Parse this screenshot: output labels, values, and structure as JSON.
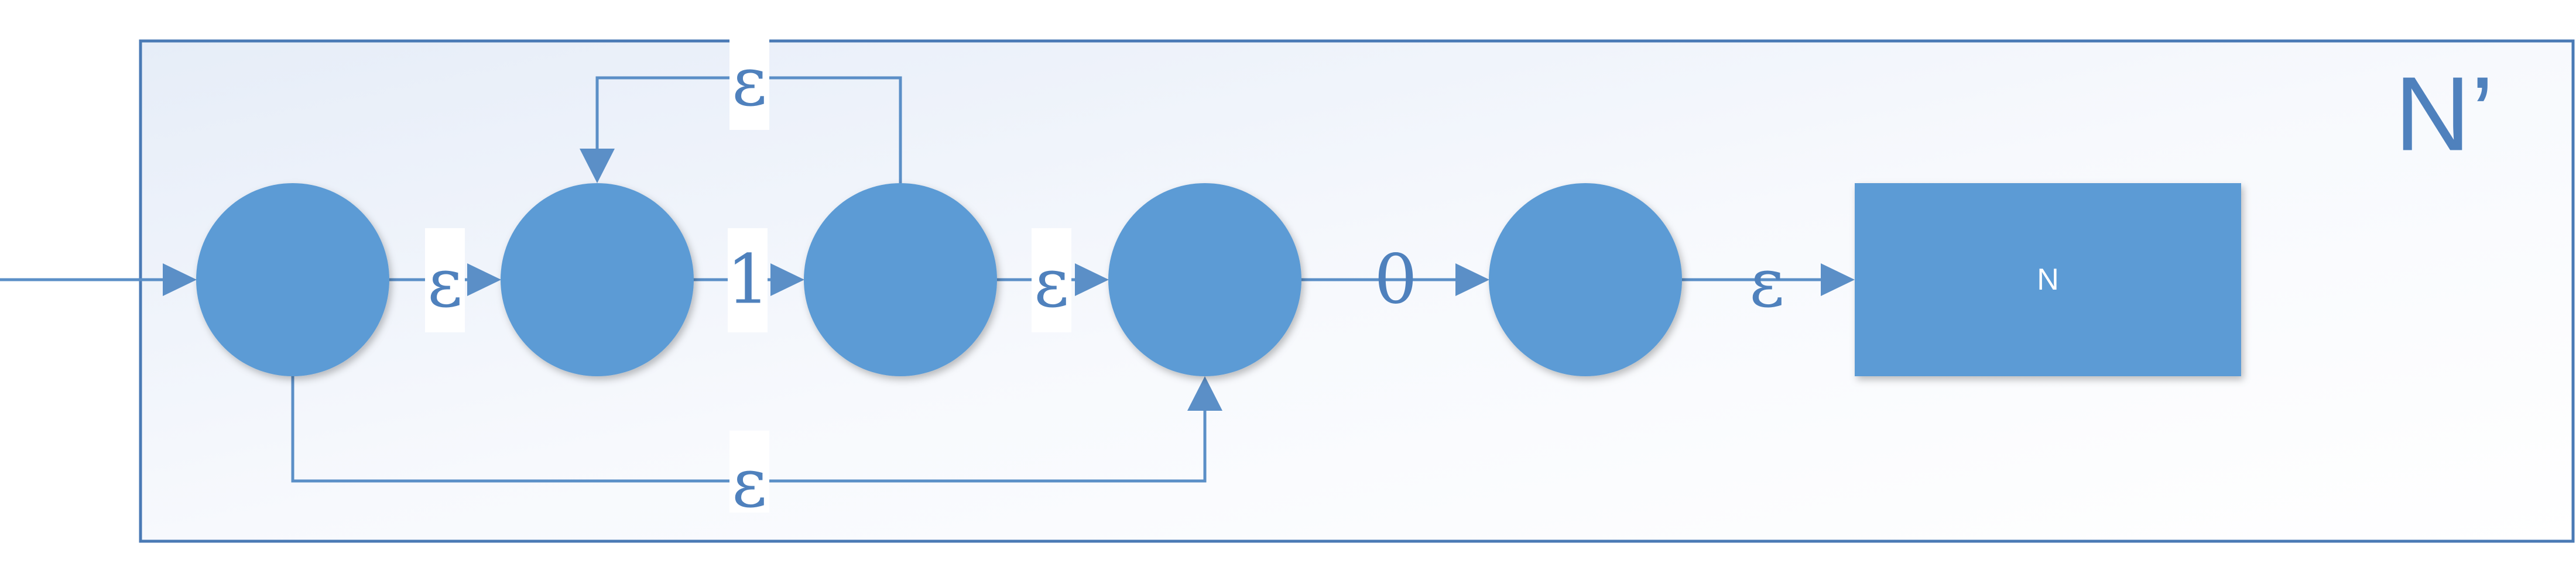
{
  "diagram": {
    "title": "N’",
    "inner_automaton_label": "N",
    "transitions": [
      {
        "from": "start",
        "to": "state-1",
        "label": ""
      },
      {
        "from": "state-1",
        "to": "state-2",
        "label": "ε"
      },
      {
        "from": "state-2",
        "to": "state-3",
        "label": "1"
      },
      {
        "from": "state-3",
        "to": "state-4",
        "label": "ε"
      },
      {
        "from": "state-4",
        "to": "state-5",
        "label": "0"
      },
      {
        "from": "state-5",
        "to": "box-N",
        "label": "ε"
      },
      {
        "from": "state-3",
        "to": "state-2",
        "label": "ε"
      },
      {
        "from": "state-1",
        "to": "state-4",
        "label": "ε"
      }
    ]
  },
  "colors": {
    "state_fill": "#5b9bd5",
    "edge": "#5b8fc7",
    "frame": "#4a7ab5",
    "label": "#4f81bd"
  }
}
